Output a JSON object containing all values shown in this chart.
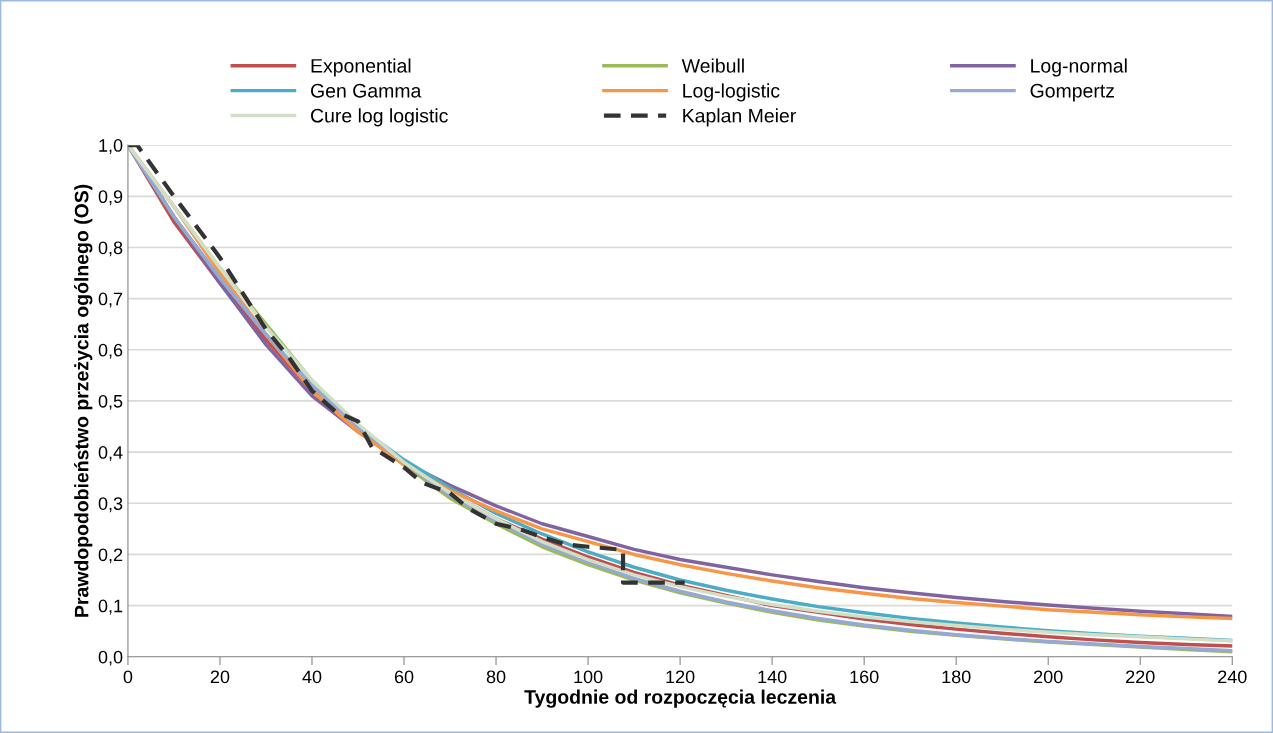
{
  "chart_data": {
    "type": "line",
    "xlabel": "Tygodnie od rozpoczęcia leczenia",
    "ylabel": "Prawdopodobieństwo przeżycia ogólnego (OS)",
    "x": [
      0,
      10,
      20,
      30,
      40,
      50,
      60,
      70,
      80,
      90,
      100,
      110,
      120,
      130,
      140,
      150,
      160,
      170,
      180,
      190,
      200,
      210,
      220,
      230,
      240
    ],
    "xlim": [
      0,
      240
    ],
    "xticks": [
      0,
      20,
      40,
      60,
      80,
      100,
      120,
      140,
      160,
      180,
      200,
      220,
      240
    ],
    "ylim": [
      0,
      1.0
    ],
    "yticks": [
      {
        "value": 0,
        "label": "0,0"
      },
      {
        "value": 0.1,
        "label": "0,1"
      },
      {
        "value": 0.2,
        "label": "0,2"
      },
      {
        "value": 0.3,
        "label": "0,3"
      },
      {
        "value": 0.4,
        "label": "0,4"
      },
      {
        "value": 0.5,
        "label": "0,5"
      },
      {
        "value": 0.6,
        "label": "0,6"
      },
      {
        "value": 0.7,
        "label": "0,7"
      },
      {
        "value": 0.8,
        "label": "0,8"
      },
      {
        "value": 0.9,
        "label": "0,9"
      },
      {
        "value": 1.0,
        "label": "1,0"
      }
    ],
    "grid": "y",
    "legend": "top",
    "line_style": "solid",
    "marker": "none",
    "series": [
      {
        "name": "Exponential",
        "color": "#c0504d",
        "values": [
          1.0,
          0.85,
          0.73,
          0.62,
          0.52,
          0.44,
          0.38,
          0.32,
          0.27,
          0.23,
          0.195,
          0.165,
          0.14,
          0.12,
          0.1,
          0.087,
          0.074,
          0.063,
          0.054,
          0.046,
          0.039,
          0.033,
          0.028,
          0.024,
          0.021
        ]
      },
      {
        "name": "Weibull",
        "color": "#9bbb59",
        "values": [
          1.0,
          0.88,
          0.76,
          0.65,
          0.54,
          0.45,
          0.375,
          0.31,
          0.26,
          0.215,
          0.18,
          0.15,
          0.125,
          0.105,
          0.087,
          0.072,
          0.06,
          0.05,
          0.042,
          0.035,
          0.029,
          0.024,
          0.019,
          0.014,
          0.01
        ]
      },
      {
        "name": "Log-normal",
        "color": "#8064a2",
        "values": [
          1.0,
          0.86,
          0.73,
          0.61,
          0.51,
          0.44,
          0.38,
          0.335,
          0.295,
          0.26,
          0.235,
          0.21,
          0.19,
          0.175,
          0.16,
          0.147,
          0.135,
          0.125,
          0.116,
          0.108,
          0.101,
          0.095,
          0.089,
          0.084,
          0.079
        ]
      },
      {
        "name": "Gen Gamma",
        "color": "#4bacc6",
        "values": [
          1.0,
          0.86,
          0.74,
          0.63,
          0.53,
          0.45,
          0.385,
          0.33,
          0.28,
          0.24,
          0.205,
          0.175,
          0.15,
          0.13,
          0.113,
          0.098,
          0.086,
          0.075,
          0.066,
          0.058,
          0.051,
          0.045,
          0.04,
          0.036,
          0.032
        ]
      },
      {
        "name": "Log-logistic",
        "color": "#f79646",
        "values": [
          1.0,
          0.88,
          0.75,
          0.63,
          0.52,
          0.44,
          0.375,
          0.325,
          0.285,
          0.25,
          0.225,
          0.2,
          0.18,
          0.163,
          0.148,
          0.135,
          0.124,
          0.114,
          0.106,
          0.099,
          0.092,
          0.087,
          0.082,
          0.078,
          0.075
        ]
      },
      {
        "name": "Gompertz",
        "color": "#95a9d4",
        "values": [
          1.0,
          0.86,
          0.74,
          0.63,
          0.53,
          0.45,
          0.38,
          0.315,
          0.265,
          0.22,
          0.185,
          0.153,
          0.128,
          0.107,
          0.09,
          0.075,
          0.062,
          0.052,
          0.043,
          0.036,
          0.03,
          0.025,
          0.02,
          0.016,
          0.012
        ]
      },
      {
        "name": "Cure log logistic",
        "color": "#d0dfc6",
        "values": [
          1.0,
          0.88,
          0.76,
          0.645,
          0.54,
          0.455,
          0.38,
          0.32,
          0.27,
          0.225,
          0.19,
          0.16,
          0.137,
          0.118,
          0.102,
          0.089,
          0.078,
          0.069,
          0.061,
          0.054,
          0.048,
          0.043,
          0.039,
          0.035,
          0.031
        ]
      },
      {
        "name": "Kaplan Meier",
        "color": "#333333",
        "line_style": "dashed",
        "x": [
          0,
          2,
          10,
          20,
          30,
          35,
          40,
          45,
          50,
          53,
          60,
          64,
          70,
          74,
          80,
          85,
          90,
          95,
          100,
          107.6,
          107.6,
          121
        ],
        "values": [
          1.0,
          1.0,
          0.9,
          0.78,
          0.64,
          0.585,
          0.52,
          0.48,
          0.46,
          0.41,
          0.37,
          0.34,
          0.32,
          0.29,
          0.26,
          0.25,
          0.234,
          0.22,
          0.215,
          0.209,
          0.145,
          0.145
        ]
      }
    ]
  }
}
